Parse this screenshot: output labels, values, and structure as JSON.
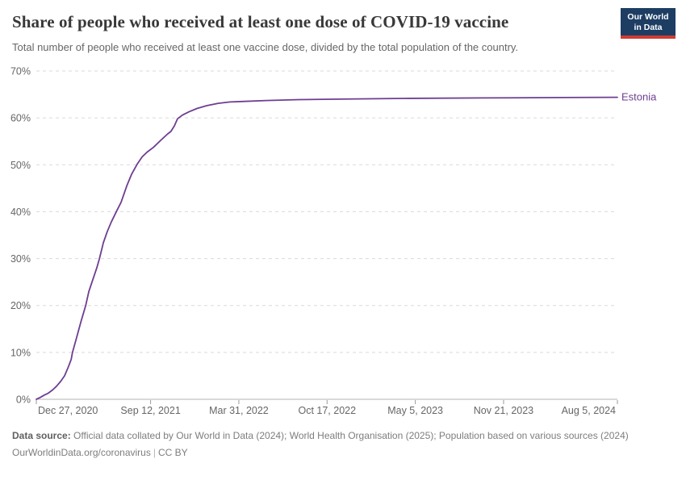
{
  "header": {
    "title": "Share of people who received at least one dose of COVID-19 vaccine",
    "subtitle": "Total number of people who received at least one vaccine dose, divided by the total population of the country.",
    "logo_line1": "Our World",
    "logo_line2": "in Data"
  },
  "colors": {
    "series": "#6d3e91",
    "grid": "#dadada",
    "axis": "#b3b3b3",
    "tick": "#9a9a9a",
    "tick_label": "#666666",
    "logo_bg": "#1d3d63",
    "logo_bar": "#d13b32"
  },
  "chart_data": {
    "type": "line",
    "title": "Share of people who received at least one dose of COVID-19 vaccine",
    "xlabel": "",
    "ylabel": "",
    "grid": "horizontal-dashed",
    "legend_position": "end-of-line-label",
    "ylim": [
      0,
      70
    ],
    "y_ticks": [
      0,
      10,
      20,
      30,
      40,
      50,
      60,
      70
    ],
    "y_tick_suffix": "%",
    "xlim_days": [
      0,
      1317
    ],
    "x_ticks": [
      {
        "day": 0,
        "label": "Dec 27, 2020"
      },
      {
        "day": 259,
        "label": "Sep 12, 2021"
      },
      {
        "day": 459,
        "label": "Mar 31, 2022"
      },
      {
        "day": 659,
        "label": "Oct 17, 2022"
      },
      {
        "day": 859,
        "label": "May 5, 2023"
      },
      {
        "day": 1059,
        "label": "Nov 21, 2023"
      },
      {
        "day": 1317,
        "label": "Aug 5, 2024"
      }
    ],
    "series": [
      {
        "name": "Estonia",
        "color": "#6d3e91",
        "points": [
          [
            0,
            0
          ],
          [
            9,
            0.4
          ],
          [
            18,
            0.9
          ],
          [
            27,
            1.3
          ],
          [
            37,
            2.0
          ],
          [
            46,
            2.8
          ],
          [
            55,
            3.8
          ],
          [
            64,
            5.0
          ],
          [
            73,
            7.0
          ],
          [
            79,
            8.5
          ],
          [
            82,
            10.0
          ],
          [
            91,
            13.0
          ],
          [
            101,
            16.5
          ],
          [
            112,
            20.0
          ],
          [
            119,
            23.0
          ],
          [
            128,
            25.5
          ],
          [
            137,
            28.0
          ],
          [
            143,
            30.0
          ],
          [
            152,
            33.4
          ],
          [
            161,
            35.8
          ],
          [
            170,
            37.8
          ],
          [
            183,
            40.3
          ],
          [
            192,
            42.0
          ],
          [
            205,
            45.5
          ],
          [
            216,
            48.0
          ],
          [
            229,
            50.2
          ],
          [
            240,
            51.7
          ],
          [
            251,
            52.7
          ],
          [
            265,
            53.7
          ],
          [
            284,
            55.4
          ],
          [
            298,
            56.6
          ],
          [
            305,
            57.1
          ],
          [
            313,
            58.3
          ],
          [
            320,
            59.8
          ],
          [
            331,
            60.6
          ],
          [
            346,
            61.3
          ],
          [
            364,
            62.0
          ],
          [
            386,
            62.6
          ],
          [
            412,
            63.1
          ],
          [
            439,
            63.4
          ],
          [
            466,
            63.5
          ],
          [
            521,
            63.7
          ],
          [
            595,
            63.9
          ],
          [
            686,
            64.0
          ],
          [
            832,
            64.15
          ],
          [
            1015,
            64.25
          ],
          [
            1198,
            64.35
          ],
          [
            1317,
            64.4
          ]
        ]
      }
    ]
  },
  "footer": {
    "source_label": "Data source:",
    "source_text": " Official data collated by Our World in Data (2024); World Health Organisation (2025); Population based on various sources (2024)",
    "link": "OurWorldinData.org/coronavirus",
    "separator": "|",
    "license": "CC BY"
  }
}
